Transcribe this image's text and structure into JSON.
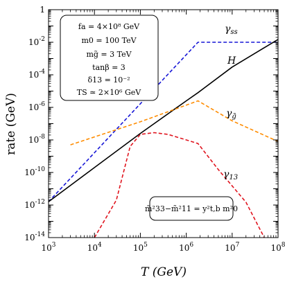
{
  "chart_data": {
    "type": "line",
    "title": "",
    "xlabel": "T (GeV)",
    "ylabel": "rate (GeV)",
    "x_scale": "log",
    "y_scale": "log",
    "xlim": [
      1000,
      100000000
    ],
    "ylim": [
      1e-14,
      1
    ],
    "x_ticks": [
      {
        "value": 1000,
        "base": "10",
        "exp": "3"
      },
      {
        "value": 10000,
        "base": "10",
        "exp": "4"
      },
      {
        "value": 100000,
        "base": "10",
        "exp": "5"
      },
      {
        "value": 1000000,
        "base": "10",
        "exp": "6"
      },
      {
        "value": 10000000,
        "base": "10",
        "exp": "7"
      },
      {
        "value": 100000000,
        "base": "10",
        "exp": "8"
      }
    ],
    "y_ticks": [
      {
        "value": 1,
        "text": "1",
        "base": "",
        "exp": ""
      },
      {
        "value": 0.01,
        "text": "",
        "base": "10",
        "exp": "-2"
      },
      {
        "value": 0.0001,
        "text": "",
        "base": "10",
        "exp": "-4"
      },
      {
        "value": 1e-06,
        "text": "",
        "base": "10",
        "exp": "-6"
      },
      {
        "value": 1e-08,
        "text": "",
        "base": "10",
        "exp": "-8"
      },
      {
        "value": 1e-10,
        "text": "",
        "base": "10",
        "exp": "-10"
      },
      {
        "value": 1e-12,
        "text": "",
        "base": "10",
        "exp": "-12"
      },
      {
        "value": 1e-14,
        "text": "",
        "base": "10",
        "exp": "-14"
      }
    ],
    "grid": false,
    "series": [
      {
        "name": "γss",
        "label_main": "γ",
        "label_sub": "ss",
        "color": "#1515d6",
        "style": "dashed",
        "x": [
          1000,
          1800000,
          100000000
        ],
        "y": [
          1.6e-12,
          0.01,
          0.01
        ]
      },
      {
        "name": "H",
        "label_main": "H",
        "label_sub": "",
        "color": "#000000",
        "style": "solid",
        "x": [
          1000,
          10000,
          100000,
          1000000,
          1800000,
          10000000,
          100000000
        ],
        "y": [
          1.6e-12,
          2e-10,
          2.5e-08,
          2.5e-06,
          8e-06,
          0.0003,
          0.015
        ]
      },
      {
        "name": "γg̃",
        "label_main": "γ",
        "label_sub": "g̃",
        "color": "#ff8c00",
        "style": "dashed",
        "x": [
          3000,
          100000,
          1800000,
          10000000,
          100000000
        ],
        "y": [
          5e-09,
          1.3e-07,
          2.5e-06,
          1.5e-07,
          8e-09
        ]
      },
      {
        "name": "γ13",
        "label_main": "γ",
        "label_sub": "13",
        "color": "#e0141e",
        "style": "dashed",
        "x": [
          10000,
          30000,
          60000,
          100000,
          200000,
          400000,
          1000000,
          1800000,
          5000000,
          20000000,
          50000000
        ],
        "y": [
          1e-14,
          2e-12,
          4e-09,
          2.2e-08,
          2.8e-08,
          2.2e-08,
          1e-08,
          6e-09,
          1.5e-10,
          1.5e-12,
          1e-14
        ]
      }
    ],
    "annotations": {
      "params_box": [
        "fa = 4×10⁸ GeV",
        "m0 = 100 TeV",
        "mg̃ = 3 TeV",
        "tanβ = 3",
        "δ13 = 10⁻²",
        "TS ≃ 2×10⁶ GeV"
      ],
      "formula_box": "m̃²33−m̃²11 = y²t,b m²0"
    }
  }
}
